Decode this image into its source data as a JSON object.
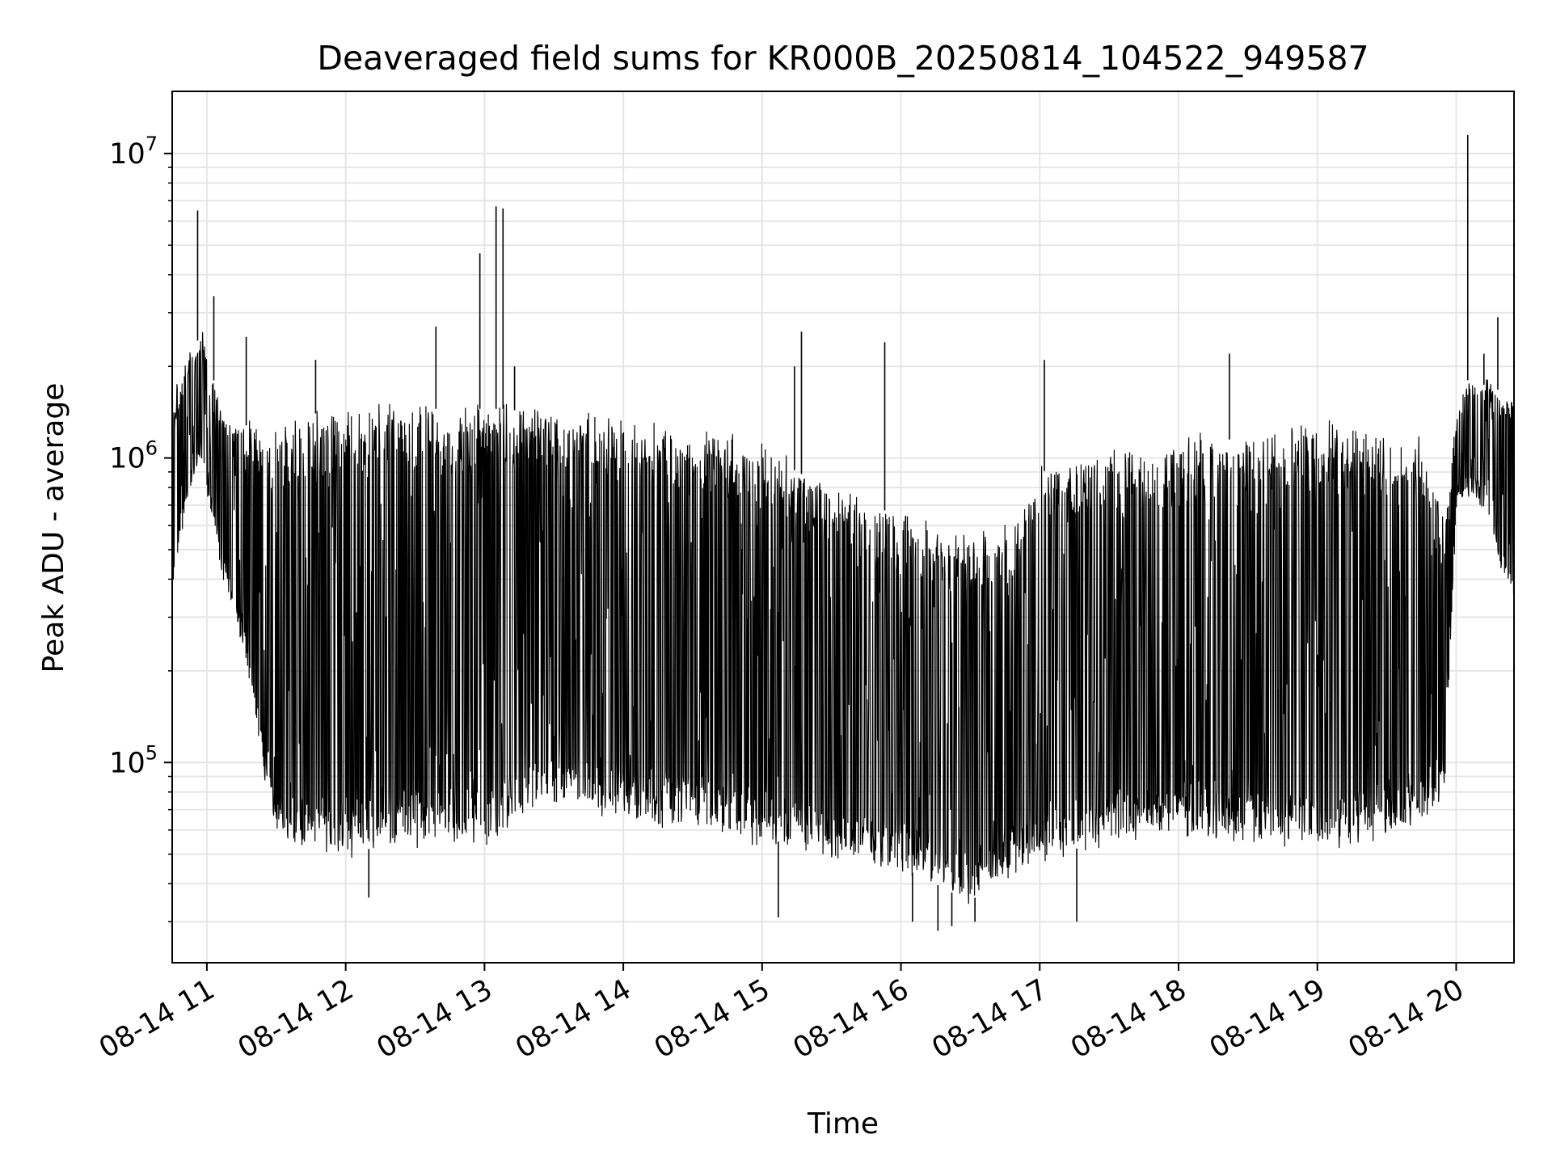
{
  "chart_data": {
    "type": "line",
    "title": "Deaveraged field sums for KR000B_20250814_104522_949587",
    "xlabel": "Time",
    "ylabel": "Peak ADU - average",
    "yscale": "log",
    "ylim": [
      22000,
      16000000
    ],
    "xlim": [
      "2025-08-14 10:45",
      "2025-08-14 20:25"
    ],
    "grid": true,
    "line_color": "#000000",
    "grid_color": "#e6e6e6",
    "x_ticks": [
      {
        "value": "2025-08-14 11:00",
        "label": "08-14 11"
      },
      {
        "value": "2025-08-14 12:00",
        "label": "08-14 12"
      },
      {
        "value": "2025-08-14 13:00",
        "label": "08-14 13"
      },
      {
        "value": "2025-08-14 14:00",
        "label": "08-14 14"
      },
      {
        "value": "2025-08-14 15:00",
        "label": "08-14 15"
      },
      {
        "value": "2025-08-14 16:00",
        "label": "08-14 16"
      },
      {
        "value": "2025-08-14 17:00",
        "label": "08-14 17"
      },
      {
        "value": "2025-08-14 18:00",
        "label": "08-14 18"
      },
      {
        "value": "2025-08-14 19:00",
        "label": "08-14 19"
      },
      {
        "value": "2025-08-14 20:00",
        "label": "08-14 20"
      }
    ],
    "y_ticks": [
      {
        "value": 100000,
        "base": "10",
        "exp": "5"
      },
      {
        "value": 1000000,
        "base": "10",
        "exp": "6"
      },
      {
        "value": 10000000,
        "base": "10",
        "exp": "7"
      }
    ],
    "series": [
      {
        "x": [
          "2025-08-14 10:45",
          "2025-08-14 10:48",
          "2025-08-14 10:51",
          "2025-08-14 10:54",
          "2025-08-14 10:57",
          "2025-08-14 11:00",
          "2025-08-14 11:03",
          "2025-08-14 11:06",
          "2025-08-14 11:10",
          "2025-08-14 11:15",
          "2025-08-14 11:20",
          "2025-08-14 11:25",
          "2025-08-14 11:30",
          "2025-08-14 11:35",
          "2025-08-14 11:40",
          "2025-08-14 11:50",
          "2025-08-14 12:00",
          "2025-08-14 12:10",
          "2025-08-14 12:20",
          "2025-08-14 12:30",
          "2025-08-14 12:40",
          "2025-08-14 12:50",
          "2025-08-14 13:00",
          "2025-08-14 13:10",
          "2025-08-14 13:20",
          "2025-08-14 13:30",
          "2025-08-14 13:40",
          "2025-08-14 13:50",
          "2025-08-14 14:00",
          "2025-08-14 14:15",
          "2025-08-14 14:30",
          "2025-08-14 14:45",
          "2025-08-14 15:00",
          "2025-08-14 15:15",
          "2025-08-14 15:30",
          "2025-08-14 15:45",
          "2025-08-14 16:00",
          "2025-08-14 16:10",
          "2025-08-14 16:20",
          "2025-08-14 16:30",
          "2025-08-14 16:40",
          "2025-08-14 16:50",
          "2025-08-14 17:00",
          "2025-08-14 17:15",
          "2025-08-14 17:30",
          "2025-08-14 17:45",
          "2025-08-14 18:00",
          "2025-08-14 18:15",
          "2025-08-14 18:30",
          "2025-08-14 18:45",
          "2025-08-14 19:00",
          "2025-08-14 19:15",
          "2025-08-14 19:30",
          "2025-08-14 19:45",
          "2025-08-14 19:55",
          "2025-08-14 20:00",
          "2025-08-14 20:05",
          "2025-08-14 20:10",
          "2025-08-14 20:15",
          "2025-08-14 20:20",
          "2025-08-14 20:25"
        ],
        "low": [
          350000,
          500000,
          700000,
          900000,
          1000000,
          800000,
          600000,
          450000,
          350000,
          250000,
          150000,
          90000,
          60000,
          55000,
          52000,
          52000,
          50000,
          52000,
          55000,
          55000,
          57000,
          58000,
          55000,
          60000,
          70000,
          75000,
          72000,
          70000,
          70000,
          65000,
          65000,
          60000,
          55000,
          55000,
          50000,
          48000,
          45000,
          42000,
          38000,
          35000,
          40000,
          45000,
          50000,
          52000,
          55000,
          58000,
          60000,
          58000,
          55000,
          55000,
          55000,
          55000,
          58000,
          65000,
          80000,
          700000,
          800000,
          750000,
          600000,
          400000,
          350000
        ],
        "high": [
          1500000,
          1800000,
          2000000,
          2300000,
          2500000,
          2300000,
          1800000,
          1400000,
          1300000,
          1300000,
          1250000,
          1250000,
          1300000,
          1350000,
          1400000,
          1400000,
          1400000,
          1450000,
          1450000,
          1450000,
          1450000,
          1450000,
          1450000,
          1450000,
          1400000,
          1400000,
          1400000,
          1350000,
          1300000,
          1250000,
          1200000,
          1150000,
          1100000,
          900000,
          800000,
          700000,
          650000,
          600000,
          550000,
          550000,
          550000,
          600000,
          900000,
          950000,
          1000000,
          1050000,
          1100000,
          1150000,
          1150000,
          1200000,
          1250000,
          1250000,
          1200000,
          1100000,
          600000,
          1300000,
          1800000,
          1700000,
          1800000,
          1600000,
          1600000
        ]
      }
    ],
    "spikes": [
      {
        "x": "2025-08-14 10:56",
        "y": 6500000
      },
      {
        "x": "2025-08-14 11:03",
        "y": 3400000
      },
      {
        "x": "2025-08-14 11:17",
        "y": 2500000
      },
      {
        "x": "2025-08-14 11:47",
        "y": 2100000
      },
      {
        "x": "2025-08-14 12:39",
        "y": 2700000
      },
      {
        "x": "2025-08-14 12:58",
        "y": 4700000
      },
      {
        "x": "2025-08-14 13:05",
        "y": 6700000
      },
      {
        "x": "2025-08-14 13:08",
        "y": 6600000
      },
      {
        "x": "2025-08-14 13:13",
        "y": 2000000
      },
      {
        "x": "2025-08-14 15:17",
        "y": 2600000
      },
      {
        "x": "2025-08-14 15:14",
        "y": 2000000
      },
      {
        "x": "2025-08-14 15:53",
        "y": 2400000
      },
      {
        "x": "2025-08-14 17:02",
        "y": 2100000
      },
      {
        "x": "2025-08-14 18:22",
        "y": 2200000
      },
      {
        "x": "2025-08-14 20:05",
        "y": 11500000
      },
      {
        "x": "2025-08-14 20:18",
        "y": 2900000
      },
      {
        "x": "2025-08-14 20:12",
        "y": 2200000
      }
    ],
    "dips": [
      {
        "x": "2025-08-14 12:10",
        "y": 36000
      },
      {
        "x": "2025-08-14 15:07",
        "y": 31000
      },
      {
        "x": "2025-08-14 16:05",
        "y": 30000
      },
      {
        "x": "2025-08-14 16:16",
        "y": 28000
      },
      {
        "x": "2025-08-14 16:22",
        "y": 29000
      },
      {
        "x": "2025-08-14 16:32",
        "y": 30000
      },
      {
        "x": "2025-08-14 17:16",
        "y": 30000
      }
    ]
  }
}
